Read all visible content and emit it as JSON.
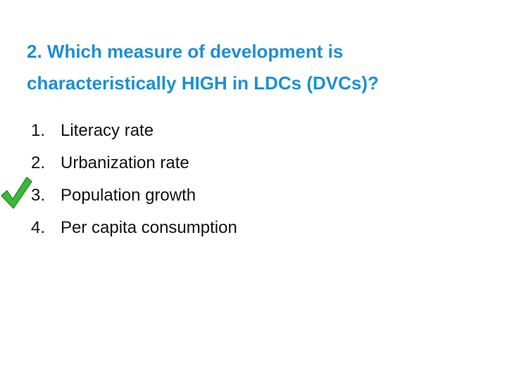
{
  "question": {
    "title_lines": [
      "2. Which measure of development is",
      "characteristically HIGH in LDCs (DVCs)?"
    ],
    "options": [
      {
        "number": "1.",
        "text": "Literacy rate"
      },
      {
        "number": "2.",
        "text": "Urbanization rate"
      },
      {
        "number": "3.",
        "text": "Population growth"
      },
      {
        "number": "4.",
        "text": "Per capita consumption"
      }
    ]
  }
}
